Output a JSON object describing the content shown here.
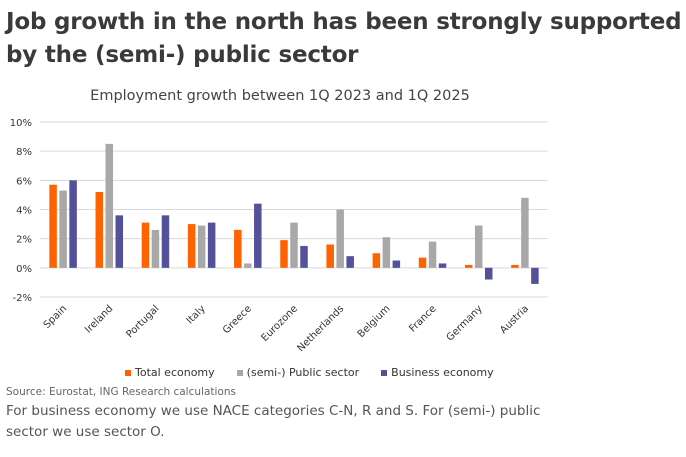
{
  "headline": "Job growth in the north has been strongly supported by the (semi-) public sector",
  "source": "Source: Eurostat, ING Research calculations",
  "note": "For business economy we use NACE categories C-N, R and S. For (semi-) public sector we use sector O.",
  "colors": {
    "total": "#ff6200",
    "public": "#a8a8a8",
    "business": "#525199",
    "grid": "#d9d9d9",
    "axis_text": "#333333"
  },
  "chart_data": {
    "type": "bar",
    "title": "Employment growth between 1Q 2023 and 1Q 2025",
    "categories": [
      "Spain",
      "Ireland",
      "Portugal",
      "Italy",
      "Greece",
      "Eurozone",
      "Netherlands",
      "Belgium",
      "France",
      "Germany",
      "Austria"
    ],
    "series": [
      {
        "name": "Total economy",
        "values": [
          5.7,
          5.2,
          3.1,
          3.0,
          2.6,
          1.9,
          1.6,
          1.0,
          0.7,
          0.2,
          0.2
        ]
      },
      {
        "name": "(semi-) Public sector",
        "values": [
          5.3,
          8.5,
          2.6,
          2.9,
          0.3,
          3.1,
          4.0,
          2.1,
          1.8,
          2.9,
          4.8
        ]
      },
      {
        "name": "Business economy",
        "values": [
          6.0,
          3.6,
          3.6,
          3.1,
          4.4,
          1.5,
          0.8,
          0.5,
          0.3,
          -0.8,
          -1.1
        ]
      }
    ],
    "ylim": [
      -2,
      10
    ],
    "yticks": [
      -2,
      0,
      2,
      4,
      6,
      8,
      10
    ],
    "ytick_labels": [
      "-2%",
      "0%",
      "2%",
      "4%",
      "6%",
      "8%",
      "10%"
    ],
    "grid": true,
    "legend_position": "bottom"
  }
}
